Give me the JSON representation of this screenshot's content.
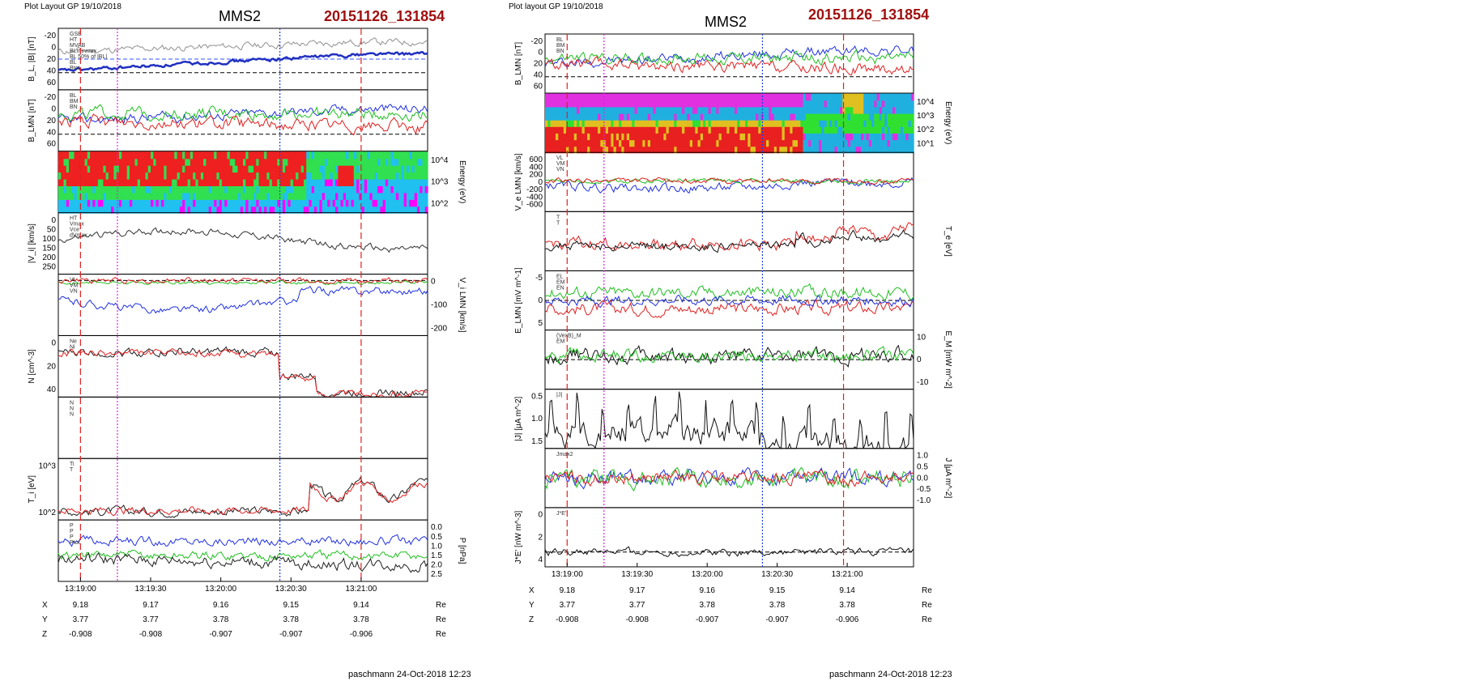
{
  "panels": [
    {
      "layout_label": "Plot Layout GP 19/10/2018",
      "spacecraft": "MMS2",
      "event_id": "20151126_131854",
      "footer": "paschmann 24-Oct-2018 12:23",
      "time_ticks": [
        "13:19:00",
        "13:19:30",
        "13:20:00",
        "13:20:30",
        "13:21:00"
      ],
      "ephemeris": [
        {
          "label": "X",
          "values": [
            "9.18",
            "9.17",
            "9.16",
            "9.15",
            "9.14"
          ],
          "unit": "Re"
        },
        {
          "label": "Y",
          "values": [
            "3.77",
            "3.77",
            "3.78",
            "3.78",
            "3.78"
          ],
          "unit": "Re"
        },
        {
          "label": "Z",
          "values": [
            "-0.908",
            "-0.908",
            "-0.907",
            "-0.907",
            "-0.906"
          ],
          "unit": "Re"
        }
      ],
      "markers": [
        {
          "t": 0.06,
          "color": "#e02020",
          "style": "dash"
        },
        {
          "t": 0.16,
          "color": "#e020e0",
          "style": "dot"
        },
        {
          "t": 0.6,
          "color": "#2040e0",
          "style": "dot"
        },
        {
          "t": 0.82,
          "color": "#e02020",
          "style": "dash"
        }
      ]
    },
    {
      "layout_label": "Plot layout GP 19/10/2018",
      "spacecraft": "MMS2",
      "event_id": "20151126_131854",
      "footer": "paschmann 24-Oct-2018 12:23",
      "time_ticks": [
        "13:19:00",
        "13:19:30",
        "13:20:00",
        "13:20:30",
        "13:21:00"
      ],
      "ephemeris": [
        {
          "label": "X",
          "values": [
            "9.18",
            "9.17",
            "9.16",
            "9.15",
            "9.14"
          ],
          "unit": "Re"
        },
        {
          "label": "Y",
          "values": [
            "3.77",
            "3.77",
            "3.78",
            "3.78",
            "3.78"
          ],
          "unit": "Re"
        },
        {
          "label": "Z",
          "values": [
            "-0.908",
            "-0.908",
            "-0.907",
            "-0.907",
            "-0.906"
          ],
          "unit": "Re"
        }
      ],
      "markers": [
        {
          "t": 0.06,
          "color": "#e02020",
          "style": "dash"
        },
        {
          "t": 0.16,
          "color": "#e020e0",
          "style": "dot"
        },
        {
          "t": 0.59,
          "color": "#2040e0",
          "style": "dot"
        },
        {
          "t": 0.81,
          "color": "#e02020",
          "style": "dash"
        }
      ]
    }
  ],
  "chart_data": [
    {
      "type": "line",
      "title": "MMS2",
      "subtitle": "20151126_131854",
      "x_ticks": [
        "13:19:00",
        "13:19:30",
        "13:20:00",
        "13:20:30",
        "13:21:00"
      ],
      "subplots": [
        {
          "ylabel": "B_L, |B| [nT]",
          "ylim": [
            -25,
            65
          ],
          "yticks": [
            "-20",
            "0",
            "20",
            "40",
            "60"
          ],
          "axis_side": "left",
          "legend": [
            "GSE",
            "HT",
            "MVAB",
            "BLminmax",
            "BL 50% of |BL|",
            "BL",
            "Btot"
          ],
          "series": [
            {
              "color": "#909090",
              "width": 1,
              "shape": "rise",
              "base": 38,
              "amp": 14,
              "noise": 4
            },
            {
              "color": "#2030c0",
              "width": 2.5,
              "shape": "rise",
              "base": 15,
              "amp": 25,
              "noise": 2
            }
          ],
          "hlines": [
            {
              "y": 20,
              "color": "#3050ff",
              "style": "dash"
            },
            {
              "y": 0,
              "color": "#000000",
              "style": "dash"
            }
          ]
        },
        {
          "ylabel": "B_LMN [nT]",
          "ylim": [
            -25,
            65
          ],
          "yticks": [
            "-20",
            "0",
            "20",
            "40",
            "60"
          ],
          "axis_side": "left",
          "legend": [
            "BL",
            "BM",
            "BN"
          ],
          "series": [
            {
              "color": "#2030e0",
              "shape": "rise",
              "base": 28,
              "amp": 18,
              "noise": 6
            },
            {
              "color": "#20c020",
              "shape": "flat",
              "base": 30,
              "amp": 0,
              "noise": 7
            },
            {
              "color": "#e02020",
              "shape": "fall",
              "base": 15,
              "amp": 8,
              "noise": 7
            }
          ],
          "hlines": [
            {
              "y": 0,
              "color": "#000000",
              "style": "dash"
            }
          ]
        },
        {
          "ylabel": "Energy (eV)",
          "kind": "spectrogram",
          "yticks": [
            "10^4",
            "10^3",
            "10^2"
          ],
          "axis_side": "right",
          "species": "ion"
        },
        {
          "ylabel": "|V_i| [km/s]",
          "ylim": [
            0,
            270
          ],
          "yticks": [
            "0",
            "50",
            "100",
            "150",
            "200",
            "250"
          ],
          "axis_side": "left",
          "legend": [
            "HT",
            "Vmax",
            "Vce",
            "dVmax"
          ],
          "series": [
            {
              "color": "#303030",
              "shape": "ramp",
              "base": 150,
              "amp": 80,
              "noise": 12
            }
          ]
        },
        {
          "ylabel": "V_i LMN [km/s]",
          "ylim": [
            -260,
            30
          ],
          "yticks": [
            "0",
            "-100",
            "-200"
          ],
          "axis_side": "right",
          "legend": [
            "VL",
            "VM",
            "VN"
          ],
          "series": [
            {
              "color": "#2030e0",
              "shape": "dip",
              "base": -90,
              "amp": 100,
              "noise": 15
            },
            {
              "color": "#20c020",
              "shape": "flat",
              "base": -10,
              "amp": 0,
              "noise": 6
            },
            {
              "color": "#e02020",
              "shape": "flat",
              "base": 0,
              "amp": 0,
              "noise": 10
            }
          ],
          "hlines": [
            {
              "y": 0,
              "color": "#000000",
              "style": "dash"
            }
          ]
        },
        {
          "ylabel": "N [cm^-3]",
          "ylim": [
            0,
            55
          ],
          "yticks": [
            "0",
            "20",
            "40"
          ],
          "axis_side": "left",
          "legend": [
            "Ne",
            "Ni"
          ],
          "series": [
            {
              "color": "#202020",
              "shape": "drop",
              "base": 40,
              "amp": 36,
              "noise": 3
            },
            {
              "color": "#e02020",
              "shape": "drop",
              "base": 39,
              "amp": 36,
              "noise": 2.5
            }
          ]
        },
        {
          "ylabel": "",
          "kind": "empty",
          "legend": [
            "N",
            "N",
            "N"
          ],
          "axis_side": "right"
        },
        {
          "ylabel": "T_i [eV]",
          "ylim": [
            50,
            1100
          ],
          "yticks": [
            "10^3",
            "10^2"
          ],
          "axis_side": "left",
          "legend": [
            "Ti",
            "T"
          ],
          "series": [
            {
              "color": "#202020",
              "shape": "rise2",
              "base": 200,
              "amp": 500,
              "noise": 60
            },
            {
              "color": "#e02020",
              "shape": "rise2",
              "base": 210,
              "amp": 480,
              "noise": 50
            }
          ]
        },
        {
          "ylabel": "P [nPa]",
          "ylim": [
            0,
            2.6
          ],
          "yticks": [
            "0.0",
            "0.5",
            "1.0",
            "1.5",
            "2.0",
            "2.5"
          ],
          "axis_side": "right",
          "legend": [
            "P",
            "P",
            "P",
            "Ptot"
          ],
          "series": [
            {
              "color": "#2030e0",
              "shape": "flat",
              "base": 1.7,
              "amp": 0,
              "noise": 0.15
            },
            {
              "color": "#20c020",
              "shape": "flat",
              "base": 1.1,
              "amp": 0,
              "noise": 0.15
            },
            {
              "color": "#202020",
              "shape": "fall",
              "base": 0.8,
              "amp": 0.3,
              "noise": 0.2
            }
          ]
        }
      ]
    },
    {
      "type": "line",
      "title": "MMS2",
      "subtitle": "20151126_131854",
      "x_ticks": [
        "13:19:00",
        "13:19:30",
        "13:20:00",
        "13:20:30",
        "13:21:00"
      ],
      "subplots": [
        {
          "ylabel": "B_LMN [nT]",
          "ylim": [
            -25,
            65
          ],
          "yticks": [
            "-20",
            "0",
            "20",
            "40",
            "60"
          ],
          "axis_side": "left",
          "legend": [
            "BL",
            "BM",
            "BN"
          ],
          "series": [
            {
              "color": "#2030e0",
              "shape": "rise",
              "base": 30,
              "amp": 20,
              "noise": 6
            },
            {
              "color": "#20c020",
              "shape": "flat",
              "base": 28,
              "amp": 0,
              "noise": 7
            },
            {
              "color": "#e02020",
              "shape": "fall",
              "base": 15,
              "amp": 8,
              "noise": 7
            }
          ],
          "hlines": [
            {
              "y": 0,
              "color": "#000000",
              "style": "dash"
            }
          ]
        },
        {
          "ylabel": "Energy (eV)",
          "kind": "spectrogram",
          "yticks": [
            "10^4",
            "10^3",
            "10^2",
            "10^1"
          ],
          "axis_side": "right",
          "species": "electron"
        },
        {
          "ylabel": "V_e LMN [km/s]",
          "ylim": [
            -700,
            650
          ],
          "yticks": [
            "600",
            "400",
            "200",
            "0",
            "-200",
            "-400",
            "-600"
          ],
          "axis_side": "left",
          "legend": [
            "VL",
            "VM",
            "VN"
          ],
          "series": [
            {
              "color": "#2030e0",
              "shape": "dip",
              "base": -100,
              "amp": 150,
              "noise": 80
            },
            {
              "color": "#20c020",
              "shape": "flat",
              "base": 0,
              "amp": 0,
              "noise": 40
            },
            {
              "color": "#e02020",
              "shape": "flat",
              "base": 0,
              "amp": 0,
              "noise": 45
            }
          ]
        },
        {
          "ylabel": "T_e [eV]",
          "ylim": [
            0,
            100
          ],
          "yticks": [],
          "axis_side": "right",
          "legend": [
            "T",
            "T"
          ],
          "series": [
            {
              "color": "#e02020",
              "shape": "rise2",
              "base": 45,
              "amp": 25,
              "noise": 8
            },
            {
              "color": "#101010",
              "shape": "rise2",
              "base": 42,
              "amp": 20,
              "noise": 6
            }
          ]
        },
        {
          "ylabel": "E_LMN [mV m^-1]",
          "ylim": [
            -9,
            9
          ],
          "yticks": [
            "-5",
            "0",
            "5"
          ],
          "axis_side": "left",
          "legend": [
            "EL",
            "EM",
            "EN"
          ],
          "series": [
            {
              "color": "#20c020",
              "shape": "flat",
              "base": 2.5,
              "amp": 0,
              "noise": 1.5
            },
            {
              "color": "#e02020",
              "shape": "flat",
              "base": -2.5,
              "amp": 0,
              "noise": 1.5
            },
            {
              "color": "#2030e0",
              "shape": "flat",
              "base": 0,
              "amp": 0,
              "noise": 1.2
            }
          ],
          "hlines": [
            {
              "y": 0,
              "color": "#000000",
              "style": "dash"
            }
          ]
        },
        {
          "ylabel": "E_M [mW m^-2]",
          "ylim": [
            -15,
            15
          ],
          "yticks": [
            "10",
            "0",
            "-10"
          ],
          "axis_side": "right",
          "legend": [
            "(VexB)_M",
            "EM"
          ],
          "series": [
            {
              "color": "#101010",
              "shape": "flat",
              "base": 2,
              "amp": 0,
              "noise": 3
            },
            {
              "color": "#20c020",
              "shape": "flat",
              "base": 2,
              "amp": 0,
              "noise": 2.5
            }
          ],
          "hlines": [
            {
              "y": 0,
              "color": "#000000",
              "style": "dash"
            }
          ]
        },
        {
          "ylabel": "|J| [μA m^-2]",
          "ylim": [
            0,
            1.55
          ],
          "yticks": [
            "0.5",
            "1.0",
            "1.5"
          ],
          "axis_side": "left",
          "legend": [
            "|J|"
          ],
          "series": [
            {
              "color": "#101010",
              "shape": "spiky",
              "base": 0.3,
              "amp": 0.3,
              "noise": 0.25
            }
          ]
        },
        {
          "ylabel": "J [μA m^-2]",
          "ylim": [
            -1.3,
            1.3
          ],
          "yticks": [
            "1.0",
            "0.5",
            "0.0",
            "-0.5",
            "-1.0"
          ],
          "axis_side": "right",
          "legend": [
            "Jmax2"
          ],
          "series": [
            {
              "color": "#2030e0",
              "shape": "flat",
              "base": 0,
              "amp": 0,
              "noise": 0.25
            },
            {
              "color": "#20c020",
              "shape": "flat",
              "base": 0,
              "amp": 0,
              "noise": 0.3
            },
            {
              "color": "#e02020",
              "shape": "flat",
              "base": 0,
              "amp": 0,
              "noise": 0.22
            }
          ]
        },
        {
          "ylabel": "J*E' [nW m^-3]",
          "ylim": [
            -1.5,
            4.5
          ],
          "yticks": [
            "0",
            "2",
            "4"
          ],
          "axis_side": "left",
          "legend": [
            "J*E'"
          ],
          "series": [
            {
              "color": "#101010",
              "shape": "flatspk",
              "base": 0,
              "amp": 0,
              "noise": 0.3
            }
          ],
          "hlines": [
            {
              "y": 0,
              "color": "#000000",
              "style": "dash"
            }
          ]
        }
      ]
    }
  ]
}
